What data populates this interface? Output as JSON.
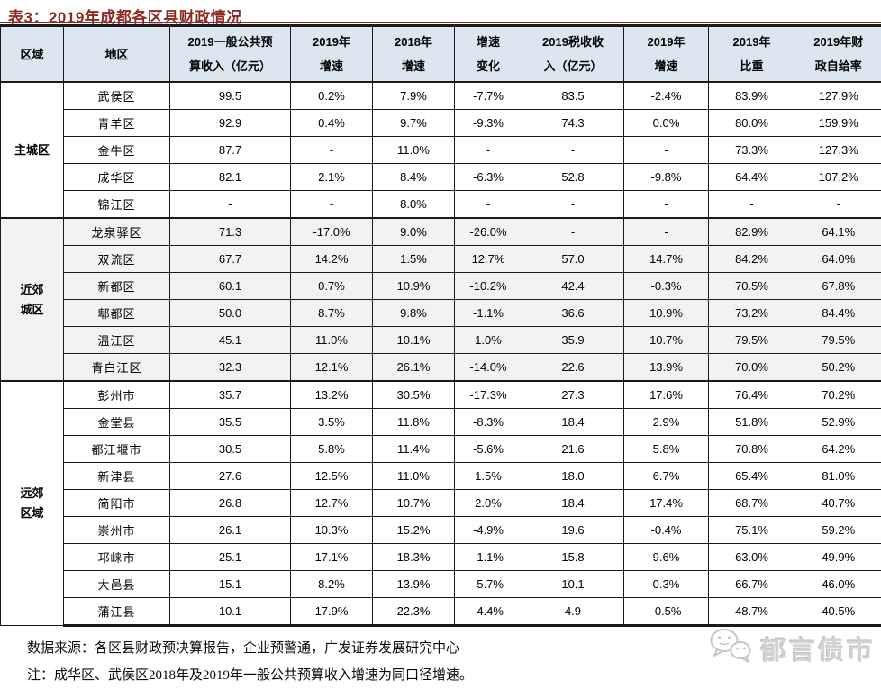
{
  "title": "表3：2019年成都各区县财政情况",
  "table": {
    "headers": [
      {
        "l1": "区域",
        "l2": ""
      },
      {
        "l1": "地区",
        "l2": ""
      },
      {
        "l1": "2019一般公共预",
        "l2": "算收入（亿元）"
      },
      {
        "l1": "2019年",
        "l2": "增速"
      },
      {
        "l1": "2018年",
        "l2": "增速"
      },
      {
        "l1": "增速",
        "l2": "变化"
      },
      {
        "l1": "2019税收收",
        "l2": "入（亿元）"
      },
      {
        "l1": "2019年",
        "l2": "增速"
      },
      {
        "l1": "2019年",
        "l2": "比重"
      },
      {
        "l1": "2019年财",
        "l2": "政自给率"
      }
    ],
    "groups": [
      {
        "region": "主城区",
        "rows": [
          {
            "name": "武侯区",
            "cells": [
              "99.5",
              "0.2%",
              "7.9%",
              "-7.7%",
              "83.5",
              "-2.4%",
              "83.9%",
              "127.9%"
            ]
          },
          {
            "name": "青羊区",
            "cells": [
              "92.9",
              "0.4%",
              "9.7%",
              "-9.3%",
              "74.3",
              "0.0%",
              "80.0%",
              "159.9%"
            ]
          },
          {
            "name": "金牛区",
            "cells": [
              "87.7",
              "-",
              "11.0%",
              "-",
              "-",
              "-",
              "73.3%",
              "127.3%"
            ]
          },
          {
            "name": "成华区",
            "cells": [
              "82.1",
              "2.1%",
              "8.4%",
              "-6.3%",
              "52.8",
              "-9.8%",
              "64.4%",
              "107.2%"
            ]
          },
          {
            "name": "锦江区",
            "cells": [
              "-",
              "-",
              "8.0%",
              "-",
              "-",
              "-",
              "-",
              "-"
            ]
          }
        ]
      },
      {
        "region": "近郊\n城区",
        "rows": [
          {
            "name": "龙泉驿区",
            "cells": [
              "71.3",
              "-17.0%",
              "9.0%",
              "-26.0%",
              "-",
              "-",
              "82.9%",
              "64.1%"
            ]
          },
          {
            "name": "双流区",
            "cells": [
              "67.7",
              "14.2%",
              "1.5%",
              "12.7%",
              "57.0",
              "14.7%",
              "84.2%",
              "64.0%"
            ]
          },
          {
            "name": "新都区",
            "cells": [
              "60.1",
              "0.7%",
              "10.9%",
              "-10.2%",
              "42.4",
              "-0.3%",
              "70.5%",
              "67.8%"
            ]
          },
          {
            "name": "郫都区",
            "cells": [
              "50.0",
              "8.7%",
              "9.8%",
              "-1.1%",
              "36.6",
              "10.9%",
              "73.2%",
              "84.4%"
            ]
          },
          {
            "name": "温江区",
            "cells": [
              "45.1",
              "11.0%",
              "10.1%",
              "1.0%",
              "35.9",
              "10.7%",
              "79.5%",
              "79.5%"
            ]
          },
          {
            "name": "青白江区",
            "cells": [
              "32.3",
              "12.1%",
              "26.1%",
              "-14.0%",
              "22.6",
              "13.9%",
              "70.0%",
              "50.2%"
            ]
          }
        ]
      },
      {
        "region": "远郊\n区域",
        "rows": [
          {
            "name": "彭州市",
            "cells": [
              "35.7",
              "13.2%",
              "30.5%",
              "-17.3%",
              "27.3",
              "17.6%",
              "76.4%",
              "70.2%"
            ]
          },
          {
            "name": "金堂县",
            "cells": [
              "35.5",
              "3.5%",
              "11.8%",
              "-8.3%",
              "18.4",
              "2.9%",
              "51.8%",
              "52.9%"
            ]
          },
          {
            "name": "都江堰市",
            "cells": [
              "30.5",
              "5.8%",
              "11.4%",
              "-5.6%",
              "21.6",
              "5.8%",
              "70.8%",
              "64.2%"
            ]
          },
          {
            "name": "新津县",
            "cells": [
              "27.6",
              "12.5%",
              "11.0%",
              "1.5%",
              "18.0",
              "6.7%",
              "65.4%",
              "81.0%"
            ]
          },
          {
            "name": "简阳市",
            "cells": [
              "26.8",
              "12.7%",
              "10.7%",
              "2.0%",
              "18.4",
              "17.4%",
              "68.7%",
              "40.7%"
            ]
          },
          {
            "name": "崇州市",
            "cells": [
              "26.1",
              "10.3%",
              "15.2%",
              "-4.9%",
              "19.6",
              "-0.4%",
              "75.1%",
              "59.2%"
            ]
          },
          {
            "name": "邛崃市",
            "cells": [
              "25.1",
              "17.1%",
              "18.3%",
              "-1.1%",
              "15.8",
              "9.6%",
              "63.0%",
              "49.9%"
            ]
          },
          {
            "name": "大邑县",
            "cells": [
              "15.1",
              "8.2%",
              "13.9%",
              "-5.7%",
              "10.1",
              "0.3%",
              "66.7%",
              "46.0%"
            ]
          },
          {
            "name": "蒲江县",
            "cells": [
              "10.1",
              "17.9%",
              "22.3%",
              "-4.4%",
              "4.9",
              "-0.5%",
              "48.7%",
              "40.5%"
            ]
          }
        ]
      }
    ]
  },
  "footer": {
    "source": "数据来源：各区县财政预决算报告，企业预警通，广发证券发展研究中心",
    "note": "注：成华区、武侯区2018年及2019年一般公共预算收入增速为同口径增速。"
  },
  "watermark": {
    "icon": "wechat-icon",
    "text": "郁言债市"
  },
  "colors": {
    "title_red": "#8C2B24",
    "header_bg": "#DCE6F1",
    "band_gray": "#F2F2F2",
    "border_dark": "#1a1a1a",
    "watermark_gray": "#D2D2D2"
  }
}
